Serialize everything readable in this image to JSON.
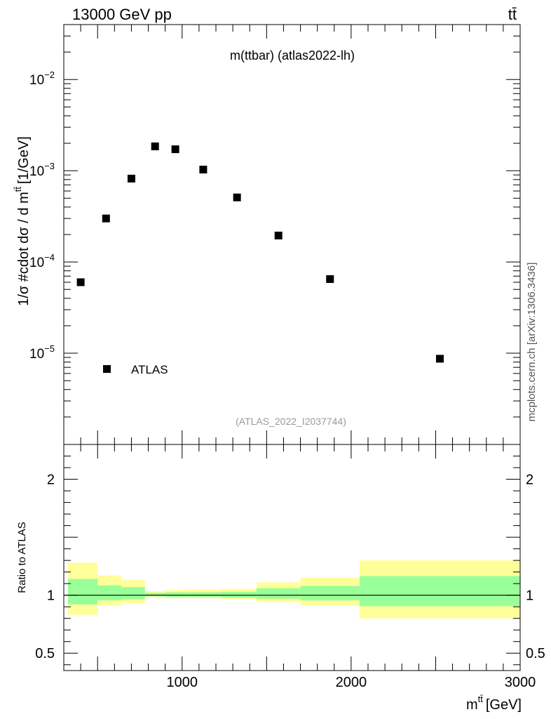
{
  "header": {
    "energy_label": "13000 GeV pp",
    "process_label": "tt̄"
  },
  "side_label": "mcplots.cern.ch [arXiv:1306.3436]",
  "chart_data": [
    {
      "type": "scatter",
      "title": "m(ttbar) (atlas2022-lh)",
      "watermark": "(ATLAS_2022_I2037744)",
      "ylabel": "1/σ #cdot dσ / d m^{tt̄} [1/GeV]",
      "ylabel_main": "1/σ #cdot dσ / d m",
      "ylabel_sup": "tt̄",
      "ylabel_unit": "[1/GeV]",
      "xlim": [
        300,
        3000
      ],
      "ylim": [
        1e-06,
        0.04
      ],
      "yscale": "log",
      "ytick_labels": [
        {
          "base": "10",
          "exp": "−2"
        },
        {
          "base": "10",
          "exp": "−3"
        },
        {
          "base": "10",
          "exp": "−4"
        },
        {
          "base": "10",
          "exp": "−5"
        }
      ],
      "ytick_values": [
        0.01,
        0.001,
        0.0001,
        1e-05
      ],
      "legend": {
        "placement": "bottom-left",
        "entries": [
          "ATLAS"
        ]
      },
      "series": [
        {
          "name": "ATLAS",
          "x": [
            400,
            550,
            700,
            840,
            960,
            1125,
            1325,
            1570,
            1875,
            2525
          ],
          "y": [
            6e-05,
            0.0003,
            0.00082,
            0.00185,
            0.00172,
            0.00103,
            0.00051,
            0.000195,
            6.5e-05,
            8.7e-06
          ],
          "xbins": [
            [
              325,
              500
            ],
            [
              500,
              640
            ],
            [
              640,
              780
            ],
            [
              780,
              900
            ],
            [
              900,
              1020
            ],
            [
              1020,
              1230
            ],
            [
              1230,
              1440
            ],
            [
              1440,
              1700
            ],
            [
              1700,
              2050
            ],
            [
              2050,
              3000
            ]
          ]
        }
      ]
    },
    {
      "type": "area",
      "ylabel": "Ratio to ATLAS",
      "xlabel": "m^{tt̄} [GeV]",
      "xlabel_main": "m",
      "xlabel_sup": "tt̄",
      "xlabel_unit": "[GeV]",
      "xlim": [
        300,
        3000
      ],
      "ylim": [
        0.35,
        2.3
      ],
      "xtick_labels": [
        "1000",
        "2000",
        "3000"
      ],
      "xtick_values": [
        1000,
        2000,
        3000
      ],
      "ytick_labels": [
        "2",
        "1",
        "0.5"
      ],
      "ytick_values": [
        2,
        1,
        0.5
      ],
      "reference_line": 1,
      "bands": {
        "x_edges": [
          325,
          500,
          640,
          780,
          900,
          1020,
          1230,
          1440,
          1700,
          2050,
          3000
        ],
        "yellow_low": [
          0.83,
          0.91,
          0.93,
          0.985,
          0.975,
          0.975,
          0.965,
          0.94,
          0.91,
          0.8
        ],
        "yellow_high": [
          1.28,
          1.17,
          1.13,
          1.035,
          1.045,
          1.05,
          1.055,
          1.11,
          1.15,
          1.3
        ],
        "green_low": [
          0.92,
          0.955,
          0.965,
          0.99,
          0.985,
          0.985,
          0.98,
          0.97,
          0.955,
          0.905
        ],
        "green_high": [
          1.14,
          1.085,
          1.07,
          1.02,
          1.025,
          1.025,
          1.03,
          1.06,
          1.08,
          1.165
        ],
        "yellow_color": "#ffff99",
        "green_color": "#99ff99"
      }
    }
  ]
}
